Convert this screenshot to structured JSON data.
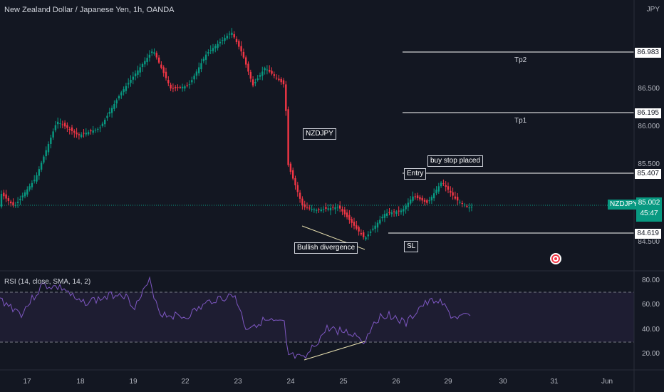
{
  "header": {
    "title": "New Zealand Dollar / Japanese Yen, 1h, OANDA",
    "currency": "JPY"
  },
  "price_axis": {
    "ticks": [
      "86.500",
      "86.000",
      "85.500",
      "84.500"
    ]
  },
  "rsi_axis": {
    "ticks": [
      "80.00",
      "60.00",
      "40.00",
      "20.00"
    ]
  },
  "date_axis": {
    "ticks": [
      "17",
      "18",
      "19",
      "22",
      "23",
      "24",
      "25",
      "26",
      "29",
      "30",
      "31",
      "Jun"
    ]
  },
  "levels": {
    "tp2": "86.983",
    "tp1": "86.195",
    "entry": "85.407",
    "sl": "84.619"
  },
  "annotations": {
    "tp2": "Tp2",
    "tp1": "Tp1",
    "entry": "Entry",
    "sl": "SL",
    "buy_stop": "buy stop placed",
    "symbol": "NZDJPY",
    "divergence": "Bullish divergence"
  },
  "current": {
    "symbol": "NZDJPY",
    "price": "85.002",
    "countdown": "45:47"
  },
  "rsi": {
    "label": "RSI (14, close, SMA, 14, 2)"
  },
  "colors": {
    "up": "#089981",
    "down": "#f23645",
    "bg": "#131722",
    "rsi": "#7e57c2"
  }
}
